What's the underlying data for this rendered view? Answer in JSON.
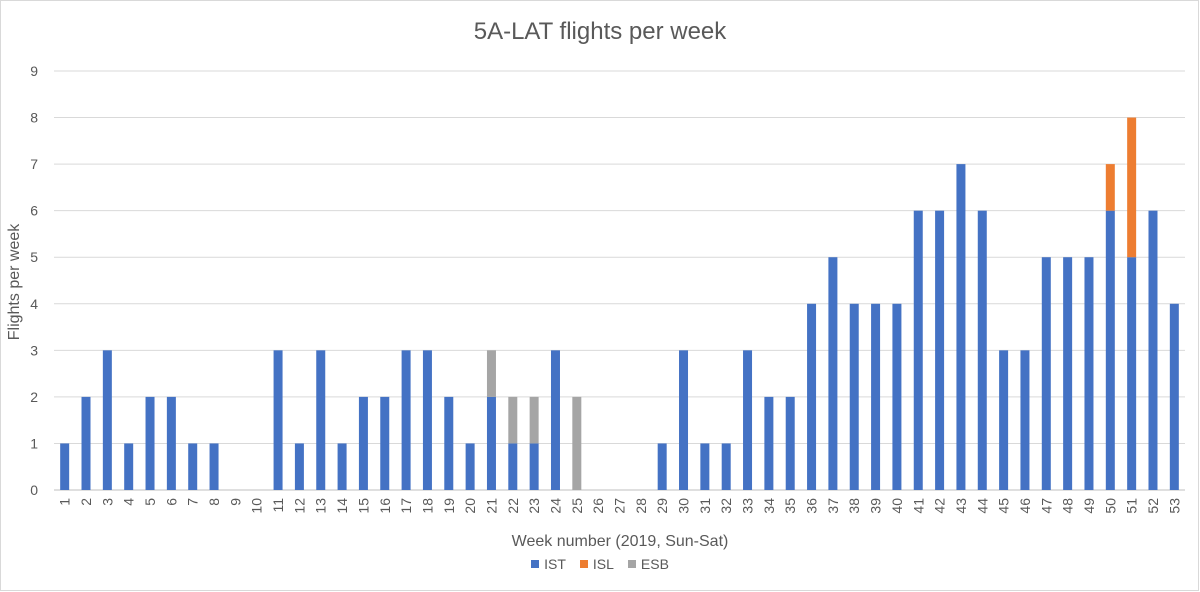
{
  "chart_data": {
    "type": "bar",
    "stacked": true,
    "title": "5A-LAT flights per week",
    "xlabel": "Week number (2019, Sun-Sat)",
    "ylabel": "Flights per week",
    "ylim": [
      0,
      9
    ],
    "yticks": [
      "0",
      "1",
      "2",
      "3",
      "4",
      "5",
      "6",
      "7",
      "8",
      "9"
    ],
    "grid": true,
    "legend_position": "bottom",
    "categories": [
      "1",
      "2",
      "3",
      "4",
      "5",
      "6",
      "7",
      "8",
      "9",
      "10",
      "11",
      "12",
      "13",
      "14",
      "15",
      "16",
      "17",
      "18",
      "19",
      "20",
      "21",
      "22",
      "23",
      "24",
      "25",
      "26",
      "27",
      "28",
      "29",
      "30",
      "31",
      "32",
      "33",
      "34",
      "35",
      "36",
      "37",
      "38",
      "39",
      "40",
      "41",
      "42",
      "43",
      "44",
      "45",
      "46",
      "47",
      "48",
      "49",
      "50",
      "51",
      "52",
      "53"
    ],
    "series": [
      {
        "name": "IST",
        "color": "#4472c4",
        "values": [
          1,
          2,
          3,
          1,
          2,
          2,
          1,
          1,
          0,
          0,
          3,
          1,
          3,
          1,
          2,
          2,
          3,
          3,
          2,
          1,
          2,
          1,
          1,
          3,
          0,
          0,
          0,
          0,
          1,
          3,
          1,
          1,
          3,
          2,
          2,
          4,
          5,
          4,
          4,
          4,
          6,
          6,
          7,
          6,
          3,
          3,
          5,
          5,
          5,
          6,
          5,
          6,
          4
        ]
      },
      {
        "name": "ISL",
        "color": "#ed7d31",
        "values": [
          0,
          0,
          0,
          0,
          0,
          0,
          0,
          0,
          0,
          0,
          0,
          0,
          0,
          0,
          0,
          0,
          0,
          0,
          0,
          0,
          0,
          0,
          0,
          0,
          0,
          0,
          0,
          0,
          0,
          0,
          0,
          0,
          0,
          0,
          0,
          0,
          0,
          0,
          0,
          0,
          0,
          0,
          0,
          0,
          0,
          0,
          0,
          0,
          0,
          1,
          3,
          0,
          0
        ]
      },
      {
        "name": "ESB",
        "color": "#a5a5a5",
        "values": [
          0,
          0,
          0,
          0,
          0,
          0,
          0,
          0,
          0,
          0,
          0,
          0,
          0,
          0,
          0,
          0,
          0,
          0,
          0,
          0,
          1,
          1,
          1,
          0,
          2,
          0,
          0,
          0,
          0,
          0,
          0,
          0,
          0,
          0,
          0,
          0,
          0,
          0,
          0,
          0,
          0,
          0,
          0,
          0,
          0,
          0,
          0,
          0,
          0,
          0,
          0,
          0,
          0
        ]
      }
    ]
  }
}
